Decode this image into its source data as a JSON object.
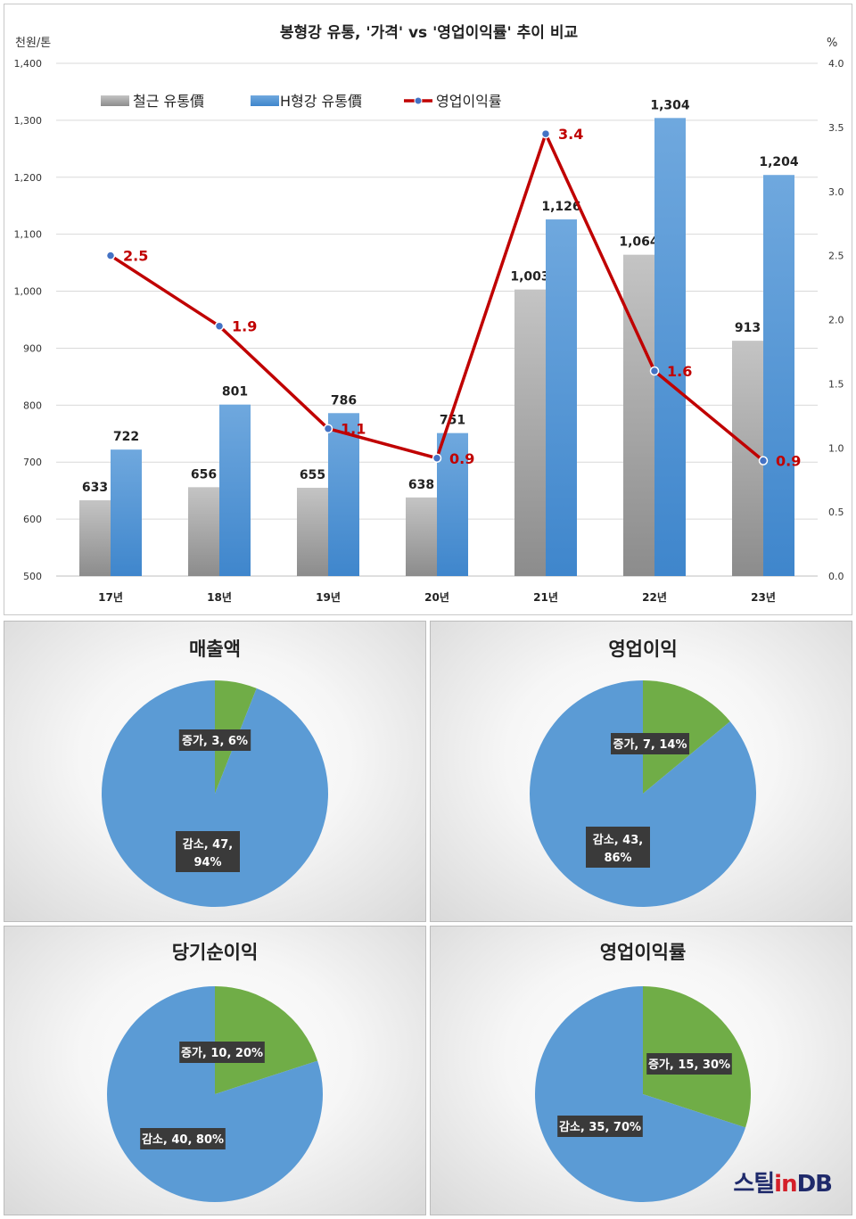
{
  "chart_data": [
    {
      "type": "bar+line",
      "title": "봉형강 유통, '가격' vs '영업이익률' 추이 비교",
      "ylabel_left": "천원/톤",
      "ylabel_right": "%",
      "ylim_left": [
        500,
        1400
      ],
      "ylim_right": [
        0.0,
        4.0
      ],
      "yticks_left": [
        "500",
        "600",
        "700",
        "800",
        "900",
        "1,000",
        "1,100",
        "1,200",
        "1,300",
        "1,400"
      ],
      "yticks_right": [
        "0.0",
        "0.5",
        "1.0",
        "1.5",
        "2.0",
        "2.5",
        "3.0",
        "3.5",
        "4.0"
      ],
      "categories": [
        "17년",
        "18년",
        "19년",
        "20년",
        "21년",
        "22년",
        "23년"
      ],
      "legend_position": "top-left",
      "grid": true,
      "series": [
        {
          "name": "철근 유통價",
          "kind": "bar",
          "axis": "left",
          "color": "#9e9e9e",
          "values": [
            633,
            656,
            655,
            638,
            1003,
            1064,
            913
          ],
          "labels": [
            "633",
            "656",
            "655",
            "638",
            "1,003",
            "1,064",
            "913"
          ]
        },
        {
          "name": "H형강 유통價",
          "kind": "bar",
          "axis": "left",
          "color": "#5b9bd5",
          "values": [
            722,
            801,
            786,
            751,
            1126,
            1304,
            1204
          ],
          "labels": [
            "722",
            "801",
            "786",
            "751",
            "1,126",
            "1,304",
            "1,204"
          ]
        },
        {
          "name": "영업이익률",
          "kind": "line",
          "axis": "right",
          "color": "#c00000",
          "values": [
            2.5,
            1.95,
            1.15,
            0.92,
            3.45,
            1.6,
            0.9
          ],
          "labels": [
            "2.5",
            "1.9",
            "1.1",
            "0.9",
            "3.4",
            "1.6",
            "0.9"
          ]
        }
      ]
    },
    {
      "type": "pie",
      "title": "매출액",
      "slices": [
        {
          "name": "증가",
          "value": 3,
          "percent": 6,
          "color": "#70ad47",
          "label": "증가, 3, 6%"
        },
        {
          "name": "감소",
          "value": 47,
          "percent": 94,
          "color": "#5b9bd5",
          "label": "감소, 47, 94%"
        }
      ]
    },
    {
      "type": "pie",
      "title": "영업이익",
      "slices": [
        {
          "name": "증가",
          "value": 7,
          "percent": 14,
          "color": "#70ad47",
          "label": "증가, 7, 14%"
        },
        {
          "name": "감소",
          "value": 43,
          "percent": 86,
          "color": "#5b9bd5",
          "label": "감소, 43, 86%"
        }
      ]
    },
    {
      "type": "pie",
      "title": "당기순이익",
      "slices": [
        {
          "name": "증가",
          "value": 10,
          "percent": 20,
          "color": "#70ad47",
          "label": "증가, 10, 20%"
        },
        {
          "name": "감소",
          "value": 40,
          "percent": 80,
          "color": "#5b9bd5",
          "label": "감소, 40, 80%"
        }
      ]
    },
    {
      "type": "pie",
      "title": "영업이익률",
      "slices": [
        {
          "name": "증가",
          "value": 15,
          "percent": 30,
          "color": "#70ad47",
          "label": "증가, 15, 30%"
        },
        {
          "name": "감소",
          "value": 35,
          "percent": 70,
          "color": "#5b9bd5",
          "label": "감소, 35, 70%"
        }
      ]
    }
  ],
  "logo": {
    "part1": "스틸",
    "part2": "in",
    "part3": "DB"
  }
}
